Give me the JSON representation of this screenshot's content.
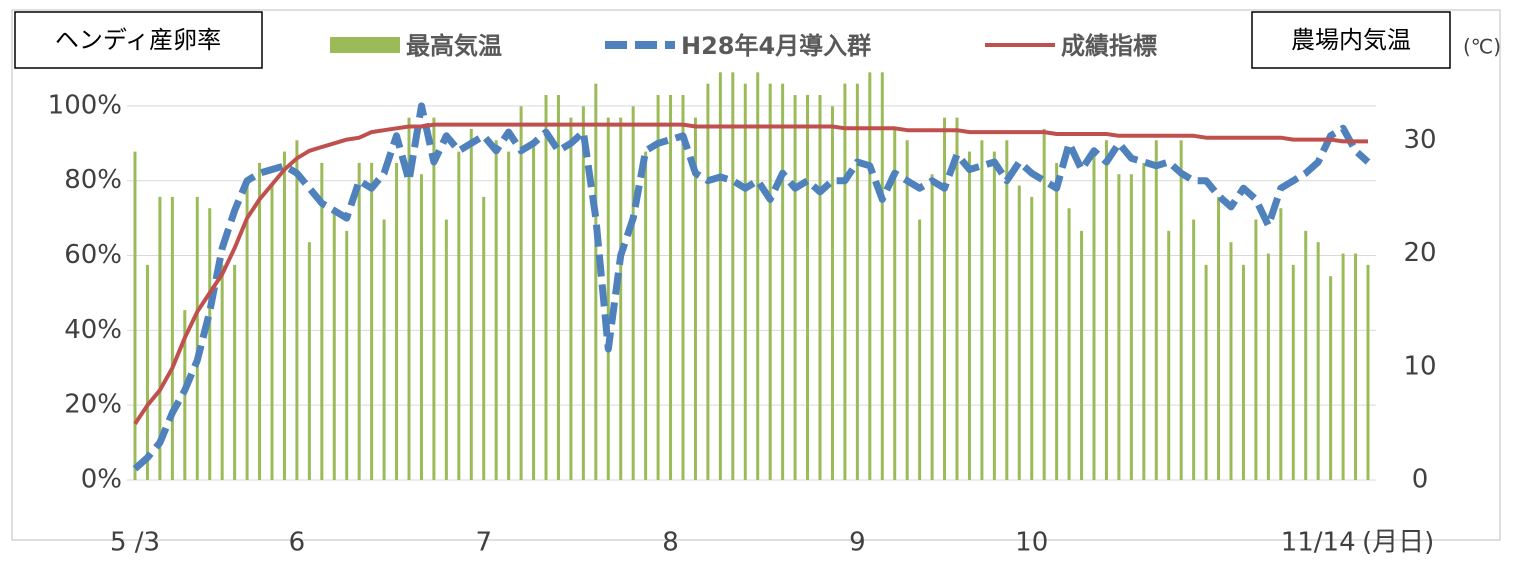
{
  "chart_data": {
    "type": "bar_line",
    "y_label": "ヘンディ産卵率",
    "y2_label": "農場内気温",
    "y2_unit": "(℃)",
    "x_unit": "(月日)",
    "categories": [
      "5 /3",
      null,
      null,
      null,
      null,
      null,
      null,
      null,
      null,
      null,
      null,
      null,
      null,
      "6",
      null,
      null,
      null,
      null,
      null,
      null,
      null,
      null,
      null,
      null,
      null,
      null,
      null,
      null,
      "7",
      null,
      null,
      null,
      null,
      null,
      null,
      null,
      null,
      null,
      null,
      null,
      null,
      null,
      null,
      "8",
      null,
      null,
      null,
      null,
      null,
      null,
      null,
      null,
      null,
      null,
      null,
      null,
      null,
      null,
      "9",
      null,
      null,
      null,
      null,
      null,
      null,
      null,
      null,
      null,
      null,
      null,
      null,
      null,
      "10",
      null,
      null,
      null,
      null,
      null,
      null,
      null,
      null,
      null,
      null,
      null,
      null,
      null,
      null,
      null,
      null,
      null,
      null,
      null,
      null,
      null,
      null,
      "11/14",
      null,
      null,
      null,
      null
    ],
    "ylim": [
      0,
      112
    ],
    "yticks": [
      {
        "value": 0,
        "label": "0%"
      },
      {
        "value": 20,
        "label": "20%"
      },
      {
        "value": 40,
        "label": "40%"
      },
      {
        "value": 60,
        "label": "60%"
      },
      {
        "value": 80,
        "label": "80%"
      },
      {
        "value": 100,
        "label": "100%"
      }
    ],
    "y2lim": [
      0,
      37
    ],
    "y2ticks": [
      0,
      10,
      20,
      30
    ],
    "grid": true,
    "series": [
      {
        "name": "最高気温",
        "kind": "bar",
        "axis": "y2",
        "color": "#9bbb59",
        "values": [
          29,
          19,
          25,
          25,
          15,
          25,
          24,
          19,
          19,
          26,
          28,
          26,
          29,
          30,
          21,
          28,
          24,
          22,
          28,
          28,
          23,
          28,
          32,
          27,
          32,
          23,
          29,
          31,
          25,
          30,
          29,
          33,
          30,
          34,
          34,
          32,
          33,
          35,
          32,
          32,
          33,
          29,
          34,
          34,
          34,
          32,
          35,
          36,
          36,
          35,
          36,
          35,
          35,
          34,
          34,
          34,
          33,
          35,
          35,
          36,
          36,
          31,
          30,
          23,
          27,
          32,
          32,
          29,
          30,
          29,
          30,
          26,
          25,
          31,
          28,
          24,
          22,
          29,
          30,
          27,
          27,
          28,
          30,
          22,
          30,
          23,
          19,
          25,
          21,
          19,
          23,
          20,
          24,
          19,
          22,
          21,
          18,
          20,
          20,
          19
        ]
      },
      {
        "name": "H28年4月導入群",
        "kind": "dashed",
        "color": "#4f81bd",
        "values": [
          3,
          6,
          10,
          18,
          24,
          32,
          45,
          62,
          72,
          80,
          82,
          83,
          84,
          82,
          78,
          74,
          72,
          70,
          80,
          78,
          82,
          92,
          80,
          100,
          85,
          92,
          88,
          90,
          92,
          88,
          93,
          88,
          90,
          93,
          88,
          90,
          93,
          70,
          35,
          60,
          70,
          88,
          90,
          91,
          92,
          82,
          80,
          81,
          80,
          78,
          80,
          75,
          82,
          78,
          80,
          77,
          80,
          80,
          85,
          84,
          75,
          82,
          80,
          78,
          80,
          78,
          87,
          83,
          84,
          85,
          80,
          85,
          82,
          80,
          78,
          90,
          83,
          88,
          85,
          90,
          86,
          85,
          84,
          85,
          82,
          80,
          80,
          76,
          73,
          78,
          75,
          68,
          78,
          80,
          82,
          85,
          92,
          94,
          88,
          85
        ]
      },
      {
        "name": "成績指標",
        "kind": "line",
        "color": "#c0504d",
        "values": [
          15,
          20,
          24,
          30,
          38,
          45,
          50,
          55,
          62,
          70,
          75,
          79,
          83,
          86,
          88,
          89,
          90,
          91,
          91.5,
          93,
          93.5,
          94,
          94.5,
          94.5,
          95,
          95,
          95,
          95,
          95,
          95,
          95,
          95,
          95,
          95,
          95,
          95,
          95,
          95,
          95,
          95,
          95,
          95,
          95,
          95,
          95,
          94.5,
          94.5,
          94.5,
          94.5,
          94.5,
          94.5,
          94.5,
          94.5,
          94.5,
          94.5,
          94.5,
          94.5,
          94,
          94,
          94,
          94,
          94,
          93.5,
          93.5,
          93.5,
          93.5,
          93.5,
          93,
          93,
          93,
          93,
          93,
          93,
          93,
          92.5,
          92.5,
          92.5,
          92.5,
          92.5,
          92,
          92,
          92,
          92,
          92,
          92,
          92,
          91.5,
          91.5,
          91.5,
          91.5,
          91.5,
          91.5,
          91.5,
          91,
          91,
          91,
          91,
          90.5,
          90.5,
          90.5
        ]
      }
    ]
  }
}
